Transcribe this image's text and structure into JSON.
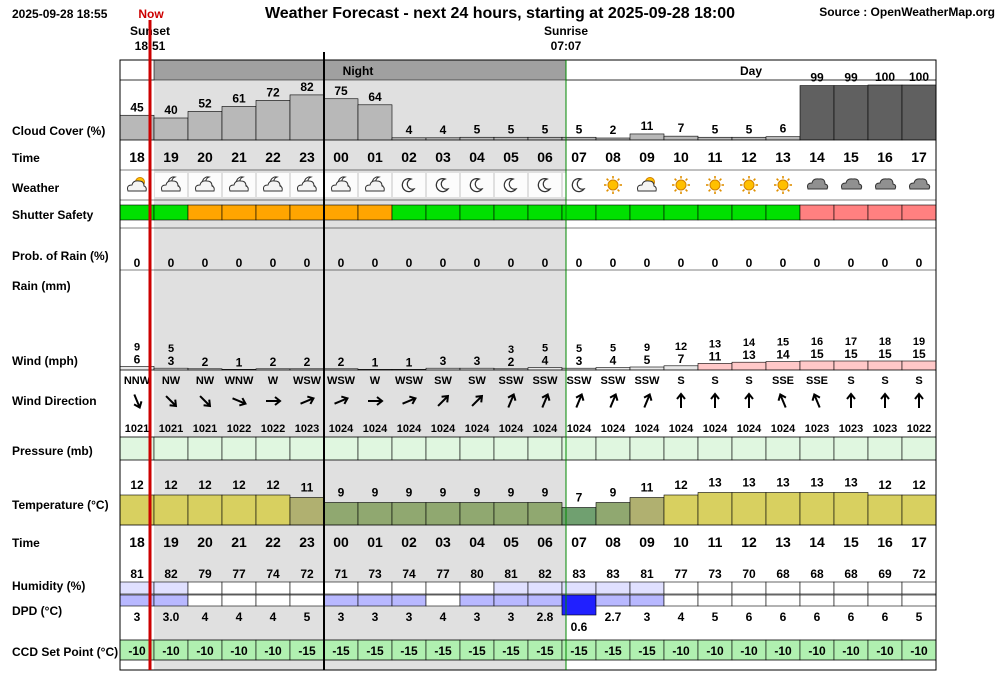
{
  "header": {
    "timestamp": "2025-09-28 18:55",
    "now_label": "Now",
    "title": "Weather Forecast - next 24 hours, starting at 2025-09-28 18:00",
    "source": "Source : OpenWeatherMap.org",
    "sunset_label": "Sunset",
    "sunset_time": "18:51",
    "sunrise_label": "Sunrise",
    "sunrise_time": "07:07"
  },
  "bands": {
    "night": "Night",
    "day": "Day"
  },
  "row_labels": {
    "cloud": "Cloud Cover (%)",
    "time": "Time",
    "weather": "Weather",
    "shutter": "Shutter Safety",
    "prob_rain": "Prob. of Rain (%)",
    "rain": "Rain (mm)",
    "wind": "Wind (mph)",
    "wind_dir": "Wind Direction",
    "pressure": "Pressure (mb)",
    "temperature": "Temperature (°C)",
    "time2": "Time",
    "humidity": "Humidity (%)",
    "dpd": "DPD (°C)",
    "ccd": "CCD Set Point (°C)"
  },
  "colors": {
    "night_bg": "#e0e0e0",
    "night_band": "#a0a0a0",
    "safe": "#00e000",
    "caution": "#ffa500",
    "unsafe": "#ff8080",
    "now_line": "#cc0000",
    "ccd_cell": "#b0f0b0"
  },
  "chart_data": {
    "type": "table",
    "hours": [
      "18",
      "19",
      "20",
      "21",
      "22",
      "23",
      "00",
      "01",
      "02",
      "03",
      "04",
      "05",
      "06",
      "07",
      "08",
      "09",
      "10",
      "11",
      "12",
      "13",
      "14",
      "15",
      "16",
      "17"
    ],
    "cloud_cover": [
      45,
      40,
      52,
      61,
      72,
      82,
      75,
      64,
      4,
      4,
      5,
      5,
      5,
      5,
      2,
      11,
      7,
      5,
      5,
      6,
      99,
      99,
      100,
      100
    ],
    "weather_icons": [
      "partly-cloudy-day-icon",
      "partly-cloudy-night-icon",
      "partly-cloudy-night-icon",
      "partly-cloudy-night-icon",
      "partly-cloudy-night-icon",
      "partly-cloudy-night-icon",
      "partly-cloudy-night-icon",
      "partly-cloudy-night-icon",
      "moon-icon",
      "moon-icon",
      "moon-icon",
      "moon-icon",
      "moon-icon",
      "moon-icon",
      "sun-icon",
      "partly-cloudy-day-icon",
      "sun-icon",
      "sun-icon",
      "sun-icon",
      "sun-icon",
      "cloud-icon",
      "cloud-icon",
      "cloud-icon",
      "cloud-icon"
    ],
    "shutter_safety": [
      "safe",
      "safe",
      "caution",
      "caution",
      "caution",
      "caution",
      "caution",
      "caution",
      "safe",
      "safe",
      "safe",
      "safe",
      "safe",
      "safe",
      "safe",
      "safe",
      "safe",
      "safe",
      "safe",
      "safe",
      "unsafe",
      "unsafe",
      "unsafe",
      "unsafe"
    ],
    "prob_rain": [
      0,
      0,
      0,
      0,
      0,
      0,
      0,
      0,
      0,
      0,
      0,
      0,
      0,
      0,
      0,
      0,
      0,
      0,
      0,
      0,
      0,
      0,
      0,
      0
    ],
    "wind_gust": [
      9,
      5,
      null,
      null,
      null,
      null,
      null,
      null,
      null,
      null,
      null,
      3,
      5,
      5,
      5,
      9,
      12,
      13,
      14,
      15,
      16,
      17,
      18,
      19
    ],
    "wind_speed": [
      6,
      3,
      2,
      1,
      2,
      2,
      2,
      1,
      1,
      3,
      3,
      2,
      4,
      3,
      4,
      5,
      7,
      11,
      13,
      14,
      15,
      15,
      15,
      15
    ],
    "wind_dir": [
      "NNW",
      "NW",
      "NW",
      "WNW",
      "W",
      "WSW",
      "WSW",
      "W",
      "WSW",
      "SW",
      "SW",
      "SSW",
      "SSW",
      "SSW",
      "SSW",
      "SSW",
      "S",
      "S",
      "S",
      "SSE",
      "SSE",
      "S",
      "S",
      "S"
    ],
    "pressure": [
      1021,
      1021,
      1021,
      1022,
      1022,
      1023,
      1024,
      1024,
      1024,
      1024,
      1024,
      1024,
      1024,
      1024,
      1024,
      1024,
      1024,
      1024,
      1024,
      1024,
      1023,
      1023,
      1023,
      1022
    ],
    "temperature": [
      12,
      12,
      12,
      12,
      12,
      11,
      9,
      9,
      9,
      9,
      9,
      9,
      9,
      7,
      9,
      11,
      12,
      13,
      13,
      13,
      13,
      13,
      12,
      12
    ],
    "humidity": [
      81,
      82,
      79,
      77,
      74,
      72,
      71,
      73,
      74,
      77,
      80,
      81,
      82,
      83,
      83,
      81,
      77,
      73,
      70,
      68,
      68,
      68,
      69,
      72
    ],
    "dpd": [
      "3",
      "3.0",
      "4",
      "4",
      "4",
      "5",
      "3",
      "3",
      "3",
      "4",
      "3",
      "3",
      "2.8",
      "0.6",
      "2.7",
      "3",
      "4",
      "5",
      "6",
      "6",
      "6",
      "6",
      "6",
      "5"
    ],
    "ccd_set_point": [
      -10,
      -10,
      -10,
      -10,
      -10,
      -15,
      -15,
      -15,
      -15,
      -15,
      -15,
      -15,
      -15,
      -15,
      -15,
      -15,
      -10,
      -10,
      -10,
      -10,
      -10,
      -10,
      -10,
      -10
    ]
  }
}
